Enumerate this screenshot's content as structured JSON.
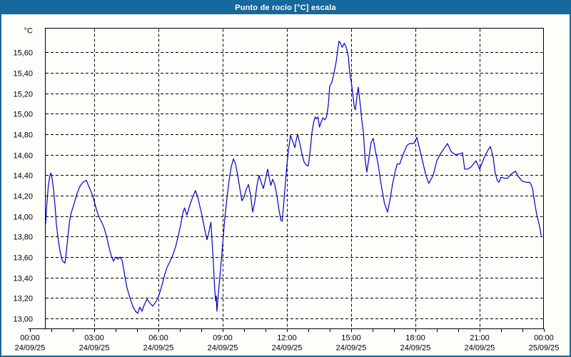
{
  "window": {
    "title": "Punto de rocío [°C] escala"
  },
  "colors": {
    "chrome_blue": "#17689b",
    "plot_background": "#fdfdf9",
    "grid_color": "#000000",
    "series_color": "#0000cd"
  },
  "chart_data": {
    "type": "line",
    "title": "Punto de rocío [°C] escala",
    "ylabel": "°C",
    "unit_label": "°C",
    "grid": "dashed",
    "legend": "none",
    "ylim": [
      12.9,
      15.85
    ],
    "xlim_hours": [
      0,
      24
    ],
    "y_ticks": [
      {
        "label": "13,00",
        "value": 13.0
      },
      {
        "label": "13,20",
        "value": 13.2
      },
      {
        "label": "13,40",
        "value": 13.4
      },
      {
        "label": "13,60",
        "value": 13.6
      },
      {
        "label": "13,80",
        "value": 13.8
      },
      {
        "label": "14,00",
        "value": 14.0
      },
      {
        "label": "14,20",
        "value": 14.2
      },
      {
        "label": "14,40",
        "value": 14.4
      },
      {
        "label": "14,60",
        "value": 14.6
      },
      {
        "label": "14,80",
        "value": 14.8
      },
      {
        "label": "15,00",
        "value": 15.0
      },
      {
        "label": "15,20",
        "value": 15.2
      },
      {
        "label": "15,40",
        "value": 15.4
      },
      {
        "label": "15,60",
        "value": 15.6
      }
    ],
    "x_ticks": [
      {
        "hour": 0,
        "time": "00:00",
        "date": "24/09/25"
      },
      {
        "hour": 3,
        "time": "03:00",
        "date": "24/09/25"
      },
      {
        "hour": 6,
        "time": "06:00",
        "date": "24/09/25"
      },
      {
        "hour": 9,
        "time": "09:00",
        "date": "24/09/25"
      },
      {
        "hour": 12,
        "time": "12:00",
        "date": "24/09/25"
      },
      {
        "hour": 15,
        "time": "15:00",
        "date": "24/09/25"
      },
      {
        "hour": 18,
        "time": "18:00",
        "date": "24/09/25"
      },
      {
        "hour": 21,
        "time": "21:00",
        "date": "24/09/25"
      },
      {
        "hour": 24,
        "time": "00:00",
        "date": "25/09/25"
      }
    ],
    "x_gridline_hours": [
      3,
      6,
      9,
      12,
      15,
      18,
      21
    ],
    "x_minor_tick_step_hours": 1,
    "series": [
      {
        "name": "Punto de rocío [°C]",
        "points": [
          [
            0.73,
            13.92
          ],
          [
            0.78,
            14.1
          ],
          [
            0.85,
            14.28
          ],
          [
            0.93,
            14.4
          ],
          [
            0.98,
            14.42
          ],
          [
            1.03,
            14.37
          ],
          [
            1.1,
            14.26
          ],
          [
            1.17,
            14.1
          ],
          [
            1.23,
            13.93
          ],
          [
            1.3,
            13.8
          ],
          [
            1.4,
            13.66
          ],
          [
            1.5,
            13.57
          ],
          [
            1.58,
            13.55
          ],
          [
            1.63,
            13.54
          ],
          [
            1.7,
            13.65
          ],
          [
            1.77,
            13.8
          ],
          [
            1.85,
            13.95
          ],
          [
            1.92,
            14.03
          ],
          [
            2.0,
            14.08
          ],
          [
            2.1,
            14.15
          ],
          [
            2.2,
            14.22
          ],
          [
            2.33,
            14.29
          ],
          [
            2.47,
            14.33
          ],
          [
            2.63,
            14.35
          ],
          [
            2.77,
            14.28
          ],
          [
            2.93,
            14.2
          ],
          [
            3.07,
            14.09
          ],
          [
            3.17,
            14.02
          ],
          [
            3.27,
            13.97
          ],
          [
            3.37,
            13.93
          ],
          [
            3.47,
            13.88
          ],
          [
            3.6,
            13.78
          ],
          [
            3.7,
            13.69
          ],
          [
            3.8,
            13.61
          ],
          [
            3.9,
            13.56
          ],
          [
            4.0,
            13.6
          ],
          [
            4.1,
            13.58
          ],
          [
            4.2,
            13.6
          ],
          [
            4.3,
            13.57
          ],
          [
            4.4,
            13.45
          ],
          [
            4.53,
            13.3
          ],
          [
            4.67,
            13.2
          ],
          [
            4.8,
            13.12
          ],
          [
            4.93,
            13.07
          ],
          [
            5.03,
            13.05
          ],
          [
            5.13,
            13.11
          ],
          [
            5.23,
            13.07
          ],
          [
            5.33,
            13.13
          ],
          [
            5.47,
            13.19
          ],
          [
            5.6,
            13.15
          ],
          [
            5.73,
            13.12
          ],
          [
            5.87,
            13.16
          ],
          [
            6.0,
            13.21
          ],
          [
            6.13,
            13.3
          ],
          [
            6.27,
            13.41
          ],
          [
            6.4,
            13.5
          ],
          [
            6.5,
            13.54
          ],
          [
            6.67,
            13.62
          ],
          [
            6.8,
            13.7
          ],
          [
            6.93,
            13.81
          ],
          [
            7.07,
            13.95
          ],
          [
            7.15,
            14.04
          ],
          [
            7.22,
            14.08
          ],
          [
            7.33,
            14.01
          ],
          [
            7.47,
            14.11
          ],
          [
            7.57,
            14.17
          ],
          [
            7.73,
            14.25
          ],
          [
            7.83,
            14.19
          ],
          [
            7.93,
            14.1
          ],
          [
            8.03,
            14.01
          ],
          [
            8.13,
            13.9
          ],
          [
            8.2,
            13.83
          ],
          [
            8.27,
            13.77
          ],
          [
            8.37,
            13.86
          ],
          [
            8.45,
            13.94
          ],
          [
            8.55,
            13.6
          ],
          [
            8.63,
            13.28
          ],
          [
            8.67,
            13.17
          ],
          [
            8.7,
            13.22
          ],
          [
            8.73,
            13.07
          ],
          [
            8.8,
            13.25
          ],
          [
            8.9,
            13.48
          ],
          [
            9.0,
            13.73
          ],
          [
            9.1,
            13.98
          ],
          [
            9.2,
            14.18
          ],
          [
            9.3,
            14.35
          ],
          [
            9.4,
            14.48
          ],
          [
            9.5,
            14.56
          ],
          [
            9.6,
            14.51
          ],
          [
            9.7,
            14.4
          ],
          [
            9.8,
            14.27
          ],
          [
            9.9,
            14.15
          ],
          [
            10.0,
            14.19
          ],
          [
            10.1,
            14.26
          ],
          [
            10.2,
            14.31
          ],
          [
            10.3,
            14.21
          ],
          [
            10.4,
            14.04
          ],
          [
            10.5,
            14.14
          ],
          [
            10.6,
            14.3
          ],
          [
            10.7,
            14.4
          ],
          [
            10.8,
            14.33
          ],
          [
            10.9,
            14.27
          ],
          [
            11.0,
            14.36
          ],
          [
            11.1,
            14.46
          ],
          [
            11.18,
            14.37
          ],
          [
            11.25,
            14.3
          ],
          [
            11.33,
            14.36
          ],
          [
            11.43,
            14.31
          ],
          [
            11.53,
            14.2
          ],
          [
            11.63,
            14.06
          ],
          [
            11.72,
            13.96
          ],
          [
            11.78,
            13.95
          ],
          [
            11.85,
            14.12
          ],
          [
            11.92,
            14.3
          ],
          [
            12.0,
            14.5
          ],
          [
            12.08,
            14.66
          ],
          [
            12.17,
            14.79
          ],
          [
            12.27,
            14.73
          ],
          [
            12.37,
            14.67
          ],
          [
            12.43,
            14.74
          ],
          [
            12.5,
            14.8
          ],
          [
            12.6,
            14.71
          ],
          [
            12.7,
            14.61
          ],
          [
            12.8,
            14.53
          ],
          [
            12.9,
            14.5
          ],
          [
            13.0,
            14.49
          ],
          [
            13.08,
            14.63
          ],
          [
            13.17,
            14.82
          ],
          [
            13.25,
            14.92
          ],
          [
            13.32,
            14.97
          ],
          [
            13.38,
            14.95
          ],
          [
            13.45,
            14.97
          ],
          [
            13.52,
            14.87
          ],
          [
            13.6,
            14.92
          ],
          [
            13.68,
            14.96
          ],
          [
            13.77,
            14.94
          ],
          [
            13.85,
            14.97
          ],
          [
            13.93,
            15.08
          ],
          [
            14.0,
            15.27
          ],
          [
            14.1,
            15.31
          ],
          [
            14.2,
            15.4
          ],
          [
            14.3,
            15.51
          ],
          [
            14.37,
            15.62
          ],
          [
            14.43,
            15.71
          ],
          [
            14.5,
            15.69
          ],
          [
            14.58,
            15.65
          ],
          [
            14.68,
            15.69
          ],
          [
            14.77,
            15.65
          ],
          [
            14.87,
            15.56
          ],
          [
            14.93,
            15.4
          ],
          [
            15.0,
            15.32
          ],
          [
            15.08,
            15.19
          ],
          [
            15.15,
            15.06
          ],
          [
            15.2,
            15.04
          ],
          [
            15.27,
            15.17
          ],
          [
            15.33,
            15.26
          ],
          [
            15.43,
            15.08
          ],
          [
            15.5,
            14.93
          ],
          [
            15.57,
            14.82
          ],
          [
            15.65,
            14.56
          ],
          [
            15.73,
            14.43
          ],
          [
            15.83,
            14.57
          ],
          [
            15.93,
            14.72
          ],
          [
            16.03,
            14.76
          ],
          [
            16.13,
            14.64
          ],
          [
            16.25,
            14.52
          ],
          [
            16.4,
            14.31
          ],
          [
            16.55,
            14.13
          ],
          [
            16.7,
            14.04
          ],
          [
            16.83,
            14.18
          ],
          [
            16.93,
            14.31
          ],
          [
            17.07,
            14.45
          ],
          [
            17.15,
            14.51
          ],
          [
            17.27,
            14.51
          ],
          [
            17.4,
            14.59
          ],
          [
            17.5,
            14.64
          ],
          [
            17.6,
            14.69
          ],
          [
            17.73,
            14.71
          ],
          [
            17.93,
            14.71
          ],
          [
            18.07,
            14.77
          ],
          [
            18.17,
            14.68
          ],
          [
            18.33,
            14.54
          ],
          [
            18.5,
            14.39
          ],
          [
            18.63,
            14.32
          ],
          [
            18.83,
            14.4
          ],
          [
            19.0,
            14.54
          ],
          [
            19.17,
            14.61
          ],
          [
            19.4,
            14.68
          ],
          [
            19.5,
            14.71
          ],
          [
            19.67,
            14.63
          ],
          [
            19.87,
            14.6
          ],
          [
            20.1,
            14.61
          ],
          [
            20.2,
            14.62
          ],
          [
            20.3,
            14.46
          ],
          [
            20.45,
            14.46
          ],
          [
            20.6,
            14.48
          ],
          [
            20.83,
            14.54
          ],
          [
            21.0,
            14.46
          ],
          [
            21.23,
            14.58
          ],
          [
            21.4,
            14.65
          ],
          [
            21.5,
            14.68
          ],
          [
            21.63,
            14.58
          ],
          [
            21.72,
            14.43
          ],
          [
            21.82,
            14.35
          ],
          [
            21.9,
            14.33
          ],
          [
            22.0,
            14.38
          ],
          [
            22.17,
            14.37
          ],
          [
            22.3,
            14.37
          ],
          [
            22.47,
            14.41
          ],
          [
            22.6,
            14.43
          ],
          [
            22.67,
            14.44
          ],
          [
            22.83,
            14.38
          ],
          [
            23.0,
            14.34
          ],
          [
            23.2,
            14.33
          ],
          [
            23.33,
            14.33
          ],
          [
            23.4,
            14.31
          ],
          [
            23.47,
            14.27
          ],
          [
            23.57,
            14.13
          ],
          [
            23.67,
            14.01
          ],
          [
            23.8,
            13.9
          ],
          [
            23.87,
            13.81
          ]
        ]
      }
    ]
  }
}
